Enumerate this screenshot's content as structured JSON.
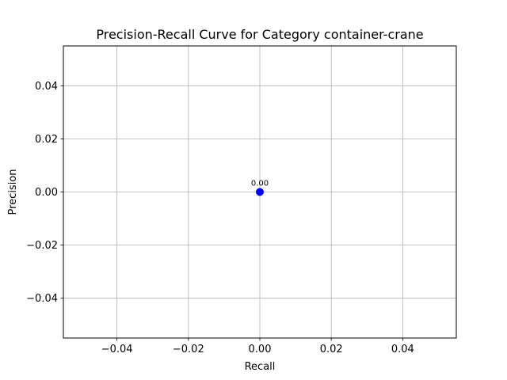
{
  "chart_data": {
    "type": "scatter",
    "title": "Precision-Recall Curve for Category container-crane",
    "xlabel": "Recall",
    "ylabel": "Precision",
    "xlim": [
      -0.055,
      0.055
    ],
    "ylim": [
      -0.055,
      0.055
    ],
    "xticks": [
      -0.04,
      -0.02,
      0.0,
      0.02,
      0.04
    ],
    "xtick_labels": [
      "−0.04",
      "−0.02",
      "0.00",
      "0.02",
      "0.04"
    ],
    "yticks": [
      -0.04,
      -0.02,
      0.0,
      0.02,
      0.04
    ],
    "ytick_labels": [
      "−0.04",
      "−0.02",
      "0.00",
      "0.02",
      "0.04"
    ],
    "grid": true,
    "series": [
      {
        "color": "#0000ff",
        "x": [
          0.0
        ],
        "y": [
          0.0
        ],
        "point_labels": [
          "0.00"
        ]
      }
    ]
  }
}
